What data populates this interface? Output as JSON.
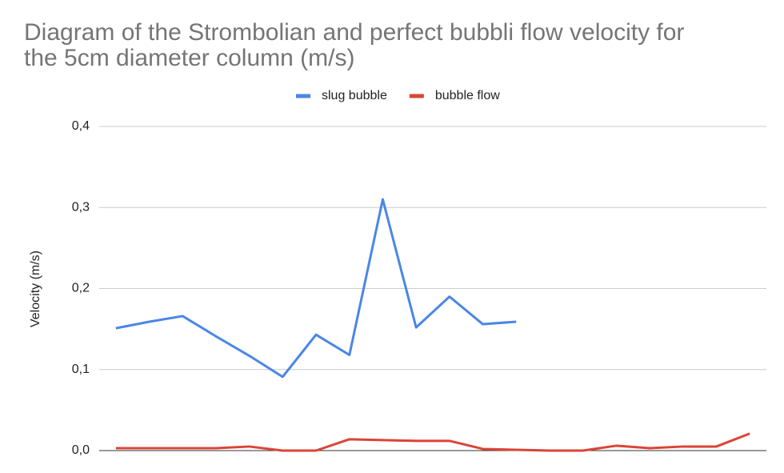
{
  "chart_data": {
    "type": "line",
    "title": "Diagram of the Strombolian and perfect bubbli flow velocity for the 5cm diameter column (m/s)",
    "y_label": "Velocity (m/s)",
    "categories": [
      null,
      null,
      null,
      null,
      null,
      null,
      null,
      null,
      null,
      null,
      null,
      null,
      null,
      null,
      null,
      null,
      null,
      null,
      null,
      null
    ],
    "series": [
      {
        "name": "slug bubble",
        "color": "#4a86e8",
        "values": [
          0.151,
          0.159,
          0.166,
          0.141,
          0.117,
          0.091,
          0.143,
          0.118,
          0.31,
          0.152,
          0.19,
          0.156,
          0.159,
          null,
          null,
          null,
          null,
          null,
          null,
          null
        ]
      },
      {
        "name": "bubble flow",
        "color": "#db4437",
        "values": [
          0.003,
          0.003,
          0.003,
          0.003,
          0.005,
          0.0,
          0.0,
          0.014,
          0.013,
          0.012,
          0.012,
          0.002,
          0.001,
          0.0,
          0.0,
          0.006,
          0.003,
          0.005,
          0.005,
          0.021
        ]
      }
    ],
    "ylim": [
      0,
      0.4
    ],
    "yticks": [
      {
        "value": 0,
        "label": "0,0"
      },
      {
        "value": 0.1,
        "label": "0,1"
      },
      {
        "value": 0.2,
        "label": "0,2"
      },
      {
        "value": 0.3,
        "label": "0,3"
      },
      {
        "value": 0.4,
        "label": "0,4"
      }
    ],
    "grid": true,
    "legend": "top"
  }
}
